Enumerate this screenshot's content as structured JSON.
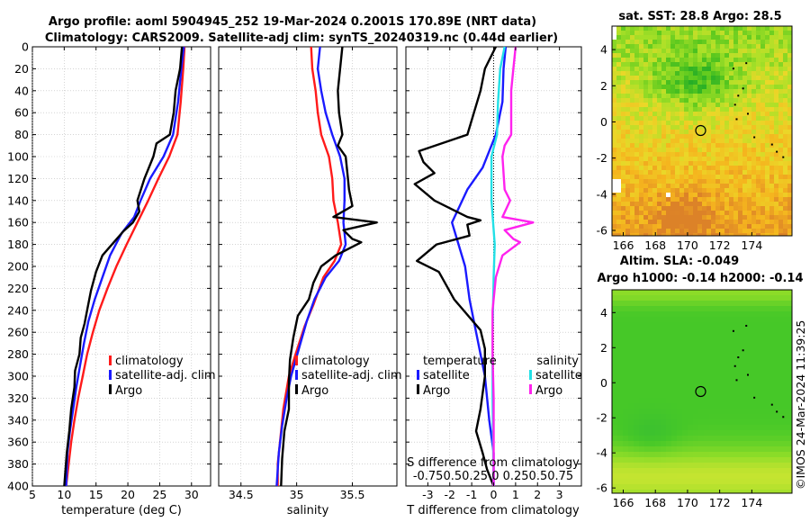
{
  "header": {
    "line1": "Argo profile: aoml 5904945_252 19-Mar-2024 0.2001S 170.89E (NRT data)",
    "line2": "Climatology: CARS2009. Satellite-adj clim: synTS_20240319.nc (0.44d earlier)"
  },
  "colors": {
    "climatology": "#ff1a1a",
    "satellite": "#1a1aff",
    "argo": "#000000",
    "sal_satellite": "#22e0e6",
    "sal_argo": "#ff22ee"
  },
  "chart_data": [
    {
      "type": "line",
      "id": "temperature",
      "xlabel": "temperature (deg C)",
      "xlim": [
        5,
        33
      ],
      "ylim": [
        400,
        0
      ],
      "xticks": [
        "5",
        "10",
        "15",
        "20",
        "25",
        "30"
      ],
      "yticks": [
        "0",
        "20",
        "40",
        "60",
        "80",
        "100",
        "120",
        "140",
        "160",
        "180",
        "200",
        "220",
        "240",
        "260",
        "280",
        "300",
        "320",
        "340",
        "360",
        "380",
        "400"
      ],
      "legend": [
        "climatology",
        "satellite-adj. clim",
        "Argo"
      ],
      "series": [
        {
          "name": "climatology",
          "color": "#ff1a1a",
          "points": [
            [
              28.9,
              0
            ],
            [
              28.7,
              20
            ],
            [
              28.3,
              50
            ],
            [
              27.8,
              80
            ],
            [
              26.5,
              100
            ],
            [
              24.8,
              120
            ],
            [
              23.2,
              140
            ],
            [
              21.5,
              160
            ],
            [
              19.8,
              180
            ],
            [
              18.2,
              200
            ],
            [
              16.8,
              220
            ],
            [
              15.5,
              240
            ],
            [
              14.5,
              260
            ],
            [
              13.6,
              280
            ],
            [
              12.9,
              300
            ],
            [
              12.2,
              320
            ],
            [
              11.6,
              340
            ],
            [
              11.1,
              360
            ],
            [
              10.7,
              380
            ],
            [
              10.3,
              400
            ]
          ]
        },
        {
          "name": "satellite-adj. clim",
          "color": "#1a1aff",
          "points": [
            [
              28.8,
              0
            ],
            [
              28.4,
              20
            ],
            [
              27.9,
              50
            ],
            [
              27.1,
              80
            ],
            [
              25.6,
              100
            ],
            [
              23.5,
              120
            ],
            [
              22.0,
              140
            ],
            [
              21.0,
              155
            ],
            [
              19.0,
              170
            ],
            [
              17.2,
              190
            ],
            [
              16.0,
              210
            ],
            [
              14.8,
              230
            ],
            [
              13.8,
              250
            ],
            [
              13.1,
              270
            ],
            [
              12.5,
              290
            ],
            [
              11.9,
              310
            ],
            [
              11.4,
              330
            ],
            [
              10.9,
              350
            ],
            [
              10.5,
              370
            ],
            [
              10.3,
              400
            ]
          ]
        },
        {
          "name": "Argo",
          "color": "#000000",
          "points": [
            [
              28.5,
              0
            ],
            [
              28.2,
              20
            ],
            [
              27.5,
              40
            ],
            [
              27.2,
              60
            ],
            [
              26.6,
              80
            ],
            [
              24.5,
              88
            ],
            [
              24.0,
              100
            ],
            [
              22.6,
              120
            ],
            [
              21.5,
              140
            ],
            [
              21.8,
              150
            ],
            [
              20.8,
              160
            ],
            [
              19.3,
              168
            ],
            [
              17.8,
              178
            ],
            [
              16.0,
              190
            ],
            [
              15.0,
              205
            ],
            [
              14.2,
              222
            ],
            [
              13.6,
              240
            ],
            [
              13.2,
              252
            ],
            [
              12.6,
              265
            ],
            [
              12.4,
              280
            ],
            [
              11.7,
              295
            ],
            [
              11.6,
              310
            ],
            [
              11.1,
              330
            ],
            [
              10.8,
              350
            ],
            [
              10.4,
              370
            ],
            [
              10.2,
              385
            ],
            [
              10.0,
              400
            ]
          ]
        }
      ]
    },
    {
      "type": "line",
      "id": "salinity",
      "xlabel": "salinity",
      "xlim": [
        34.3,
        35.9
      ],
      "ylim": [
        400,
        0
      ],
      "xticks": [
        "34.5",
        "35",
        "35.5"
      ],
      "legend": [
        "climatology",
        "satellite-adj. clim",
        "Argo"
      ],
      "series": [
        {
          "name": "climatology",
          "color": "#ff1a1a",
          "points": [
            [
              35.13,
              0
            ],
            [
              35.14,
              20
            ],
            [
              35.17,
              40
            ],
            [
              35.19,
              60
            ],
            [
              35.22,
              80
            ],
            [
              35.29,
              100
            ],
            [
              35.32,
              120
            ],
            [
              35.33,
              140
            ],
            [
              35.37,
              160
            ],
            [
              35.4,
              180
            ],
            [
              35.34,
              195
            ],
            [
              35.24,
              210
            ],
            [
              35.15,
              235
            ],
            [
              35.07,
              255
            ],
            [
              34.99,
              280
            ],
            [
              34.93,
              300
            ],
            [
              34.88,
              330
            ],
            [
              34.85,
              360
            ],
            [
              34.83,
              380
            ],
            [
              34.83,
              400
            ]
          ]
        },
        {
          "name": "satellite-adj. clim",
          "color": "#1a1aff",
          "points": [
            [
              35.21,
              0
            ],
            [
              35.19,
              20
            ],
            [
              35.22,
              40
            ],
            [
              35.26,
              60
            ],
            [
              35.32,
              80
            ],
            [
              35.39,
              100
            ],
            [
              35.43,
              120
            ],
            [
              35.43,
              140
            ],
            [
              35.42,
              160
            ],
            [
              35.44,
              180
            ],
            [
              35.38,
              195
            ],
            [
              35.26,
              210
            ],
            [
              35.16,
              230
            ],
            [
              35.09,
              250
            ],
            [
              35.02,
              275
            ],
            [
              34.95,
              300
            ],
            [
              34.91,
              320
            ],
            [
              34.87,
              345
            ],
            [
              34.84,
              370
            ],
            [
              34.82,
              400
            ]
          ]
        },
        {
          "name": "Argo",
          "color": "#000000",
          "points": [
            [
              35.41,
              0
            ],
            [
              35.39,
              20
            ],
            [
              35.37,
              40
            ],
            [
              35.38,
              60
            ],
            [
              35.41,
              80
            ],
            [
              35.37,
              90
            ],
            [
              35.44,
              100
            ],
            [
              35.46,
              120
            ],
            [
              35.47,
              130
            ],
            [
              35.5,
              145
            ],
            [
              35.33,
              155
            ],
            [
              35.72,
              160
            ],
            [
              35.42,
              167
            ],
            [
              35.5,
              175
            ],
            [
              35.58,
              178
            ],
            [
              35.35,
              190
            ],
            [
              35.22,
              200
            ],
            [
              35.15,
              215
            ],
            [
              35.11,
              230
            ],
            [
              35.01,
              245
            ],
            [
              34.97,
              265
            ],
            [
              34.94,
              285
            ],
            [
              34.93,
              305
            ],
            [
              34.93,
              330
            ],
            [
              34.89,
              350
            ],
            [
              34.87,
              375
            ],
            [
              34.86,
              400
            ]
          ]
        }
      ]
    },
    {
      "type": "line",
      "id": "difference",
      "xlabel": "T difference from climatology",
      "xlabel_top": "S difference from climatology",
      "xlim": [
        -4,
        4
      ],
      "ylim": [
        400,
        0
      ],
      "xticks": [
        "-3",
        "-2",
        "-1",
        "0",
        "1",
        "2",
        "3"
      ],
      "xticks_top": "-0.750.50.25 0 0.250.50.75",
      "legend_t_title": "temperature",
      "legend_s_title": "salinity",
      "legend_t": [
        "satellite",
        "Argo"
      ],
      "legend_s": [
        "satellite",
        "Argo"
      ],
      "series": [
        {
          "name": "T satellite",
          "color": "#1a1aff",
          "points": [
            [
              0.55,
              0
            ],
            [
              0.45,
              20
            ],
            [
              0.4,
              50
            ],
            [
              0.1,
              80
            ],
            [
              -0.5,
              110
            ],
            [
              -1.2,
              130
            ],
            [
              -1.9,
              160
            ],
            [
              -1.6,
              180
            ],
            [
              -1.3,
              200
            ],
            [
              -1.1,
              230
            ],
            [
              -0.8,
              260
            ],
            [
              -0.4,
              300
            ],
            [
              -0.2,
              340
            ],
            [
              0,
              370
            ],
            [
              0,
              400
            ]
          ]
        },
        {
          "name": "T Argo",
          "color": "#000000",
          "points": [
            [
              0.1,
              0
            ],
            [
              -0.4,
              20
            ],
            [
              -0.6,
              40
            ],
            [
              -0.9,
              60
            ],
            [
              -1.2,
              80
            ],
            [
              -3.4,
              95
            ],
            [
              -3.2,
              105
            ],
            [
              -2.7,
              115
            ],
            [
              -3.6,
              125
            ],
            [
              -2.7,
              140
            ],
            [
              -1.2,
              155
            ],
            [
              -0.6,
              158
            ],
            [
              -1.2,
              162
            ],
            [
              -1.1,
              172
            ],
            [
              -2.6,
              180
            ],
            [
              -3.5,
              195
            ],
            [
              -2.5,
              205
            ],
            [
              -1.8,
              230
            ],
            [
              -0.6,
              258
            ],
            [
              -0.4,
              275
            ],
            [
              -0.4,
              300
            ],
            [
              -0.6,
              330
            ],
            [
              -0.8,
              350
            ],
            [
              -0.5,
              370
            ],
            [
              -0.3,
              385
            ],
            [
              0,
              400
            ]
          ]
        },
        {
          "name": "S satellite",
          "color": "#22e0e6",
          "points": [
            [
              0.5,
              0
            ],
            [
              0.3,
              20
            ],
            [
              0.2,
              50
            ],
            [
              0.15,
              80
            ],
            [
              -0.1,
              100
            ],
            [
              -0.1,
              140
            ],
            [
              0.05,
              180
            ],
            [
              0,
              210
            ],
            [
              -0.05,
              260
            ],
            [
              -0.05,
              320
            ],
            [
              0,
              400
            ]
          ]
        },
        {
          "name": "S Argo",
          "color": "#ff22ee",
          "points": [
            [
              1.0,
              0
            ],
            [
              0.9,
              20
            ],
            [
              0.8,
              40
            ],
            [
              0.8,
              60
            ],
            [
              0.8,
              80
            ],
            [
              0.5,
              90
            ],
            [
              0.4,
              100
            ],
            [
              0.5,
              130
            ],
            [
              0.75,
              140
            ],
            [
              0.4,
              155
            ],
            [
              1.8,
              160
            ],
            [
              0.5,
              167
            ],
            [
              0.9,
              175
            ],
            [
              1.2,
              178
            ],
            [
              0.4,
              190
            ],
            [
              0.1,
              210
            ],
            [
              -0.05,
              240
            ],
            [
              -0.05,
              280
            ],
            [
              0,
              320
            ],
            [
              0,
              400
            ]
          ]
        }
      ]
    },
    {
      "type": "heatmap",
      "id": "sst_map",
      "title": "sat. SST: 28.8 Argo: 28.5",
      "xticks": [
        "166",
        "168",
        "170",
        "172",
        "174"
      ],
      "yticks": [
        "4",
        "2",
        "0",
        "-2",
        "-4",
        "-6"
      ],
      "xlim": [
        165.3,
        176.5
      ],
      "ylim": [
        -6.3,
        5.3
      ],
      "marker": [
        170.89,
        -0.2
      ]
    },
    {
      "type": "heatmap",
      "id": "sla_map",
      "title_line1": "Altim. SLA: -0.049",
      "title_line2": "Argo h1000: -0.14 h2000: -0.14",
      "xticks": [
        "166",
        "168",
        "170",
        "172",
        "174"
      ],
      "yticks": [
        "4",
        "2",
        "0",
        "-2",
        "-4",
        "-6"
      ],
      "xlim": [
        165.3,
        176.5
      ],
      "ylim": [
        -6.3,
        5.3
      ],
      "marker": [
        170.89,
        -0.2
      ]
    }
  ],
  "stamp": "©IMOS 24-Mar-2024 11:39:25"
}
